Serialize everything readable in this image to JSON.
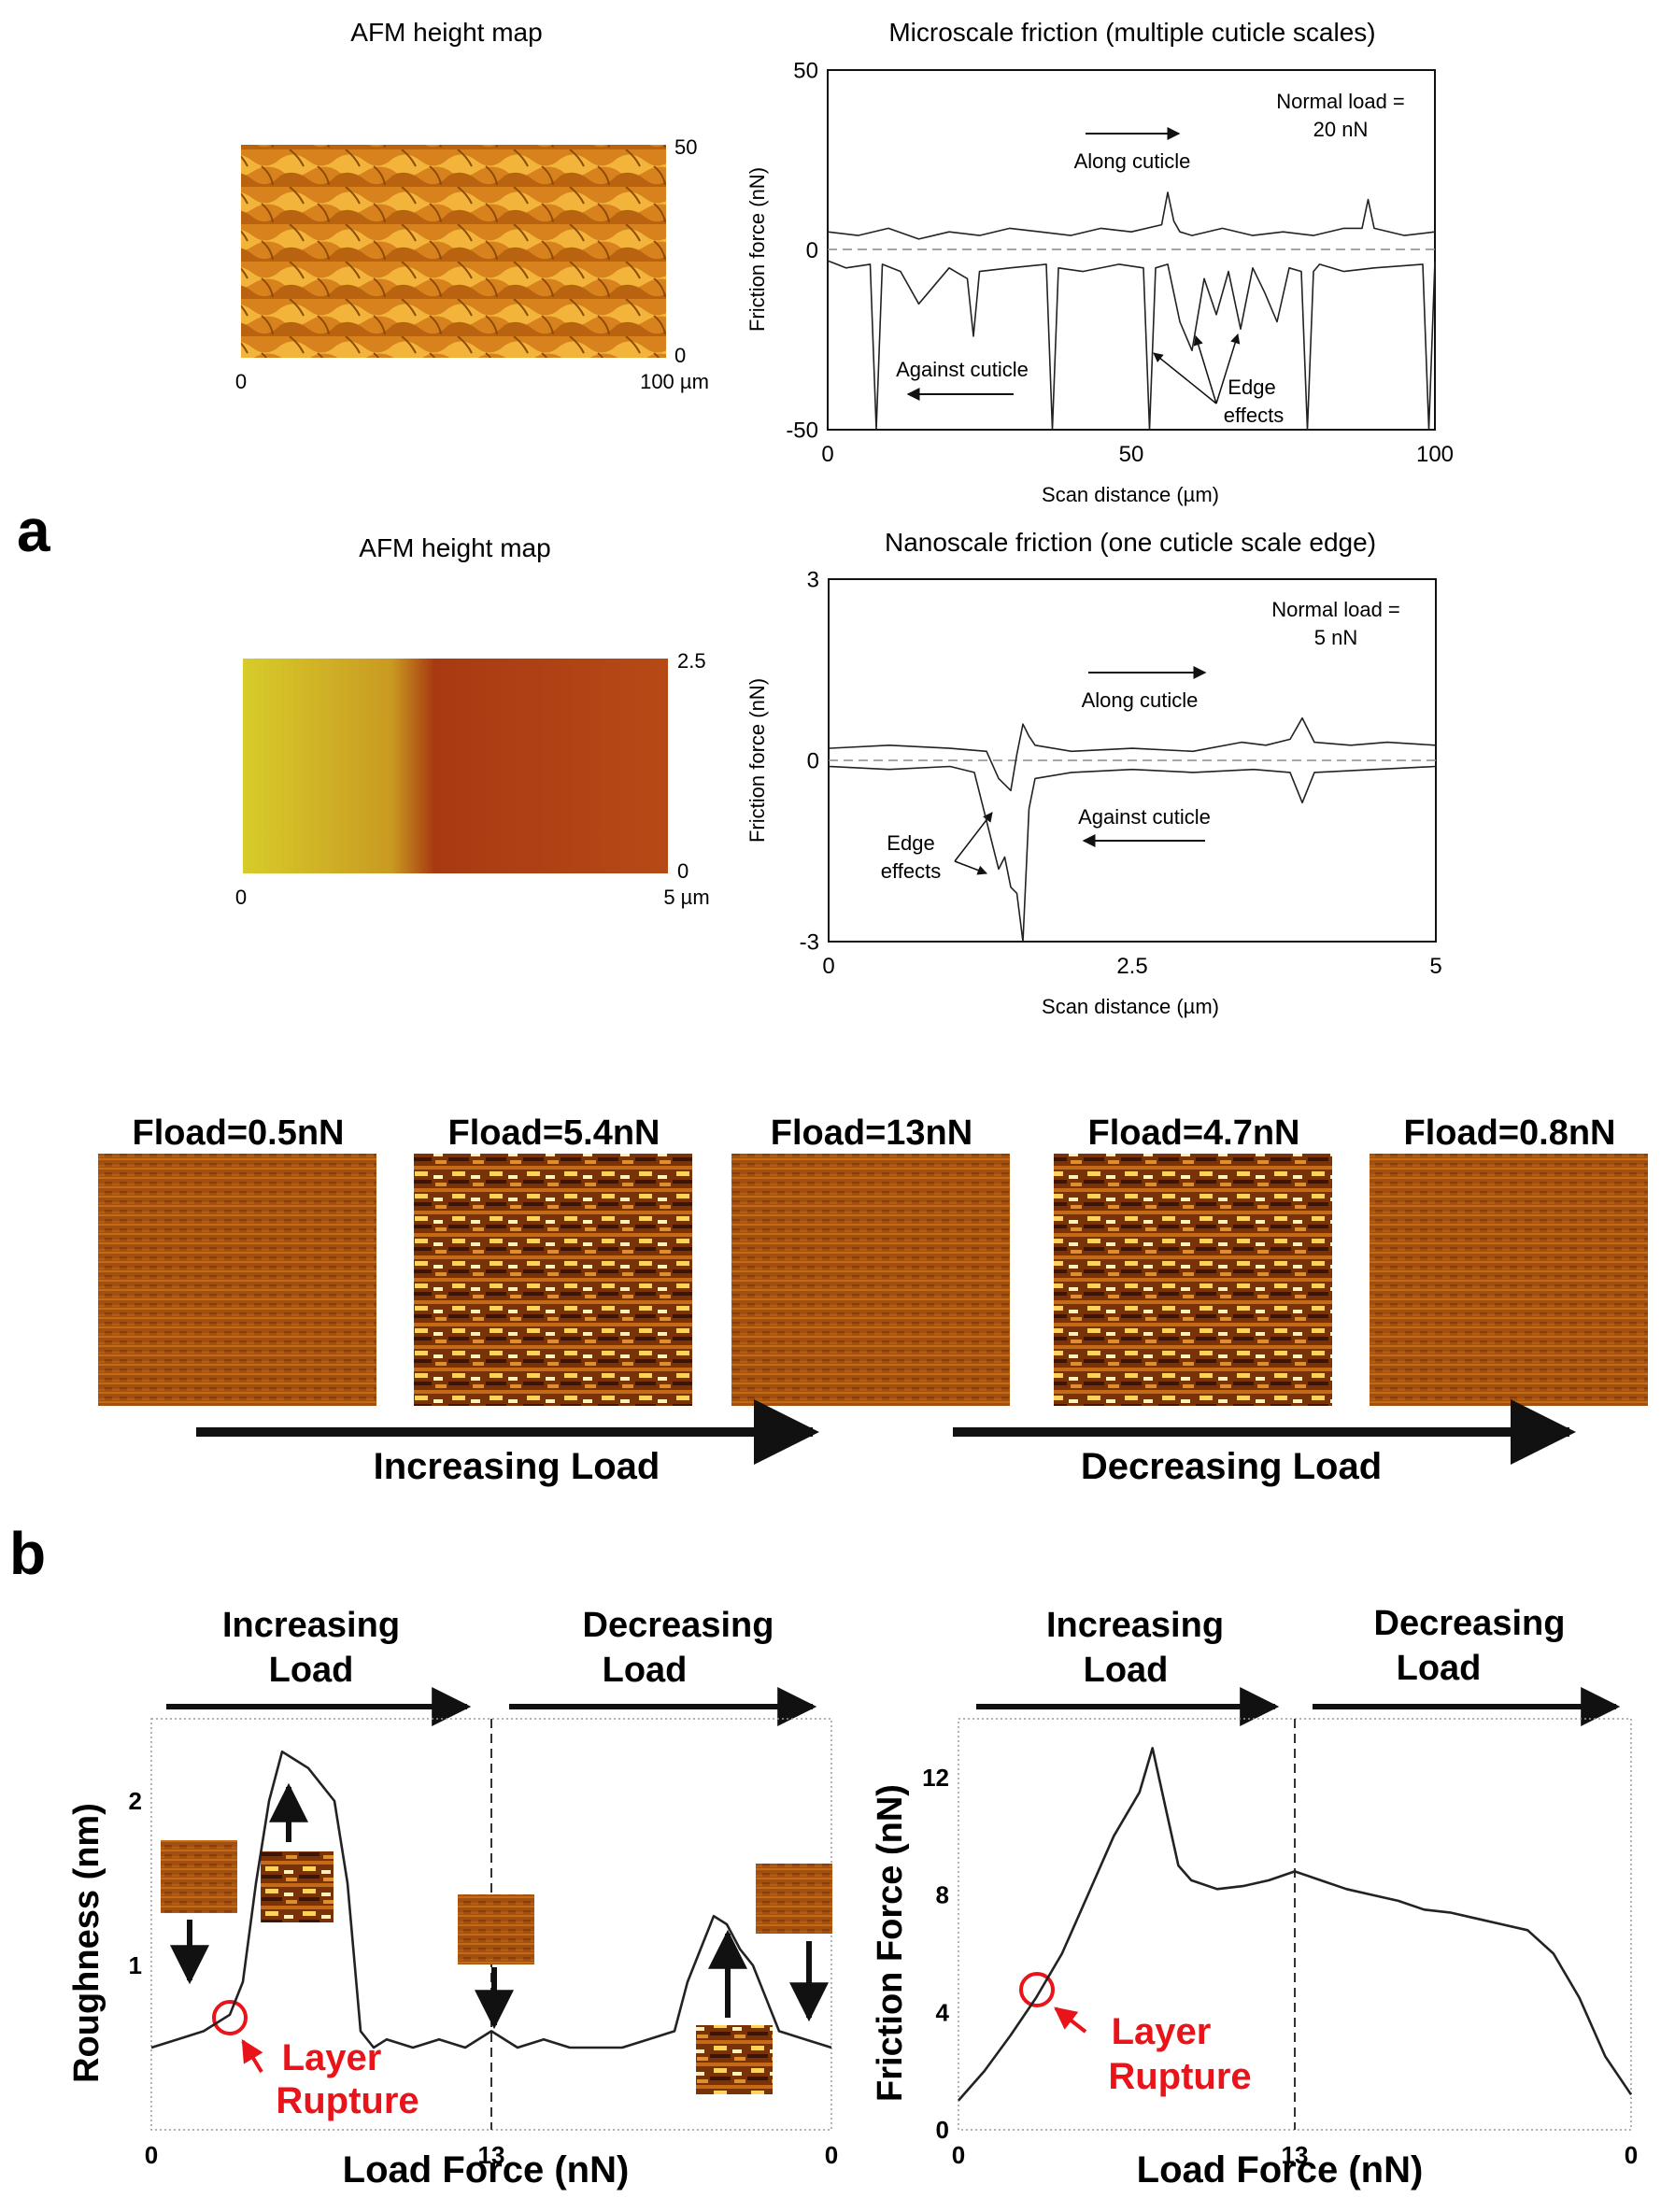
{
  "panel_labels": {
    "a": "a",
    "b": "b"
  },
  "colors": {
    "afm_high": "#f0a830",
    "afm_low": "#b85a10",
    "nano_left": "#d7cc2a",
    "nano_right": "#a83a12",
    "rupture": "#e8141a",
    "trace": "#222222"
  },
  "afm_maps": [
    {
      "title": "AFM height map",
      "x_start": "0",
      "x_end": "100 µm",
      "y_top": "50",
      "y_bottom": "0"
    },
    {
      "title": "AFM height map",
      "x_start": "0",
      "x_end": "5 µm",
      "y_top": "2.5",
      "y_bottom": "0"
    }
  ],
  "load_images": {
    "labels": [
      "Fload=0.5nN",
      "Fload=5.4nN",
      "Fload=13nN",
      "Fload=4.7nN",
      "Fload=0.8nN"
    ],
    "rough": [
      false,
      true,
      false,
      true,
      false
    ],
    "increasing_label": "Increasing Load",
    "decreasing_label": "Decreasing Load"
  },
  "annotations": {
    "micro_normal_load_1": "Normal load =",
    "micro_normal_load_2": "20 nN",
    "micro_along": "Along cuticle",
    "micro_against": "Against cuticle",
    "micro_edge_1": "Edge",
    "micro_edge_2": "effects",
    "nano_normal_load_1": "Normal load =",
    "nano_normal_load_2": "5 nN",
    "nano_along": "Along cuticle",
    "nano_against": "Against cuticle",
    "nano_edge_1": "Edge",
    "nano_edge_2": "effects",
    "rough_inc_1": "Increasing",
    "rough_inc_2": "Load",
    "rough_dec_1": "Decreasing",
    "rough_dec_2": "Load",
    "rough_rupture_1": "Layer",
    "rough_rupture_2": "Rupture",
    "fric_inc_1": "Increasing",
    "fric_inc_2": "Load",
    "fric_dec_1": "Decreasing",
    "fric_dec_2": "Load",
    "fric_rupture_1": "Layer",
    "fric_rupture_2": "Rupture"
  },
  "chart_data": [
    {
      "type": "line",
      "title": "Microscale friction (multiple cuticle scales)",
      "xlabel": "Scan distance (µm)",
      "ylabel": "Friction force (nN)",
      "xlim": [
        0,
        100
      ],
      "ylim": [
        -50,
        50
      ],
      "xticks": [
        "0",
        "50",
        "100"
      ],
      "yticks": [
        "50",
        "0",
        "-50"
      ],
      "series": [
        {
          "name": "Along cuticle",
          "x": [
            0,
            5,
            10,
            15,
            20,
            25,
            30,
            35,
            40,
            45,
            50,
            55,
            56,
            57,
            58,
            60,
            65,
            70,
            75,
            80,
            85,
            88,
            89,
            90,
            95,
            100
          ],
          "y": [
            5,
            4,
            6,
            3,
            5,
            4,
            6,
            5,
            4,
            6,
            5,
            7,
            16,
            8,
            5,
            4,
            6,
            4,
            5,
            4,
            6,
            6,
            14,
            6,
            4,
            5
          ]
        },
        {
          "name": "Against cuticle",
          "x": [
            0,
            3,
            7,
            8,
            9,
            12,
            15,
            20,
            23,
            24,
            25,
            30,
            36,
            37,
            38,
            42,
            48,
            52,
            53,
            54,
            56,
            58,
            60,
            62,
            64,
            66,
            68,
            70,
            72,
            74,
            76,
            78,
            79,
            80,
            81,
            85,
            90,
            98,
            99,
            100
          ],
          "y": [
            -3,
            -5,
            -4,
            -50,
            -4,
            -6,
            -15,
            -5,
            -8,
            -24,
            -6,
            -5,
            -4,
            -50,
            -5,
            -6,
            -4,
            -5,
            -50,
            -5,
            -4,
            -20,
            -28,
            -8,
            -18,
            -6,
            -22,
            -5,
            -12,
            -20,
            -5,
            -6,
            -50,
            -6,
            -4,
            -6,
            -5,
            -4,
            -50,
            -3
          ]
        }
      ]
    },
    {
      "type": "line",
      "title": "Nanoscale friction (one cuticle scale edge)",
      "xlabel": "Scan distance (µm)",
      "ylabel": "Friction force (nN)",
      "xlim": [
        0,
        5
      ],
      "ylim": [
        -3,
        3
      ],
      "xticks": [
        "0",
        "2.5",
        "5"
      ],
      "yticks": [
        "3",
        "0",
        "-3"
      ],
      "series": [
        {
          "name": "Along cuticle",
          "x": [
            0,
            0.5,
            1.0,
            1.3,
            1.4,
            1.5,
            1.55,
            1.6,
            1.65,
            1.7,
            2.0,
            2.5,
            3.0,
            3.4,
            3.6,
            3.8,
            3.9,
            4.0,
            4.3,
            4.6,
            5.0
          ],
          "y": [
            0.2,
            0.25,
            0.2,
            0.15,
            -0.3,
            -0.5,
            0.1,
            0.6,
            0.4,
            0.25,
            0.15,
            0.2,
            0.15,
            0.3,
            0.25,
            0.35,
            0.7,
            0.3,
            0.25,
            0.3,
            0.25
          ]
        },
        {
          "name": "Against cuticle",
          "x": [
            0,
            0.5,
            1.0,
            1.2,
            1.3,
            1.4,
            1.45,
            1.5,
            1.55,
            1.6,
            1.65,
            1.7,
            2.0,
            2.5,
            3.0,
            3.5,
            3.8,
            3.9,
            4.0,
            4.5,
            5.0
          ],
          "y": [
            -0.1,
            -0.15,
            -0.1,
            -0.2,
            -1.0,
            -1.8,
            -1.6,
            -2.1,
            -2.2,
            -3.0,
            -0.8,
            -0.3,
            -0.2,
            -0.15,
            -0.2,
            -0.15,
            -0.2,
            -0.7,
            -0.2,
            -0.15,
            -0.1
          ]
        }
      ]
    },
    {
      "type": "line",
      "xlabel": "Load Force (nN)",
      "ylabel": "Roughness (nm)",
      "xlim": [
        0,
        26
      ],
      "ylim": [
        0,
        2.5
      ],
      "xticks": [
        "0",
        "13",
        "0"
      ],
      "yticks": [
        "1",
        "2"
      ],
      "series": [
        {
          "x": [
            0,
            1,
            2,
            3,
            3.5,
            4,
            4.5,
            5,
            5.5,
            6,
            6.5,
            7,
            7.5,
            8,
            8.5,
            9,
            10,
            11,
            12,
            13,
            14,
            15,
            16,
            17,
            18,
            19,
            20,
            20.5,
            21,
            21.5,
            22,
            22.5,
            23,
            23.5,
            24,
            25,
            26
          ],
          "y": [
            0.5,
            0.55,
            0.6,
            0.7,
            0.9,
            1.5,
            2.0,
            2.3,
            2.25,
            2.2,
            2.1,
            2.0,
            1.5,
            0.6,
            0.5,
            0.55,
            0.5,
            0.55,
            0.5,
            0.6,
            0.5,
            0.55,
            0.5,
            0.5,
            0.5,
            0.55,
            0.6,
            0.9,
            1.1,
            1.3,
            1.25,
            1.1,
            1.0,
            0.8,
            0.6,
            0.55,
            0.5
          ]
        }
      ]
    },
    {
      "type": "line",
      "xlabel": "Load Force (nN)",
      "ylabel": "Friction Force (nN)",
      "xlim": [
        0,
        26
      ],
      "ylim": [
        0,
        14
      ],
      "xticks": [
        "0",
        "13",
        "0"
      ],
      "yticks": [
        "0",
        "4",
        "8",
        "12"
      ],
      "series": [
        {
          "x": [
            0,
            1,
            2,
            3,
            4,
            5,
            6,
            7,
            7.5,
            8,
            8.5,
            9,
            10,
            11,
            12,
            13,
            14,
            15,
            16,
            17,
            18,
            19,
            20,
            21,
            22,
            23,
            24,
            25,
            26
          ],
          "y": [
            1,
            2,
            3.2,
            4.5,
            6,
            8,
            10,
            11.5,
            13,
            11,
            9,
            8.5,
            8.2,
            8.3,
            8.5,
            8.8,
            8.5,
            8.2,
            8.0,
            7.8,
            7.5,
            7.4,
            7.2,
            7.0,
            6.8,
            6.0,
            4.5,
            2.5,
            1.2
          ]
        }
      ]
    }
  ]
}
